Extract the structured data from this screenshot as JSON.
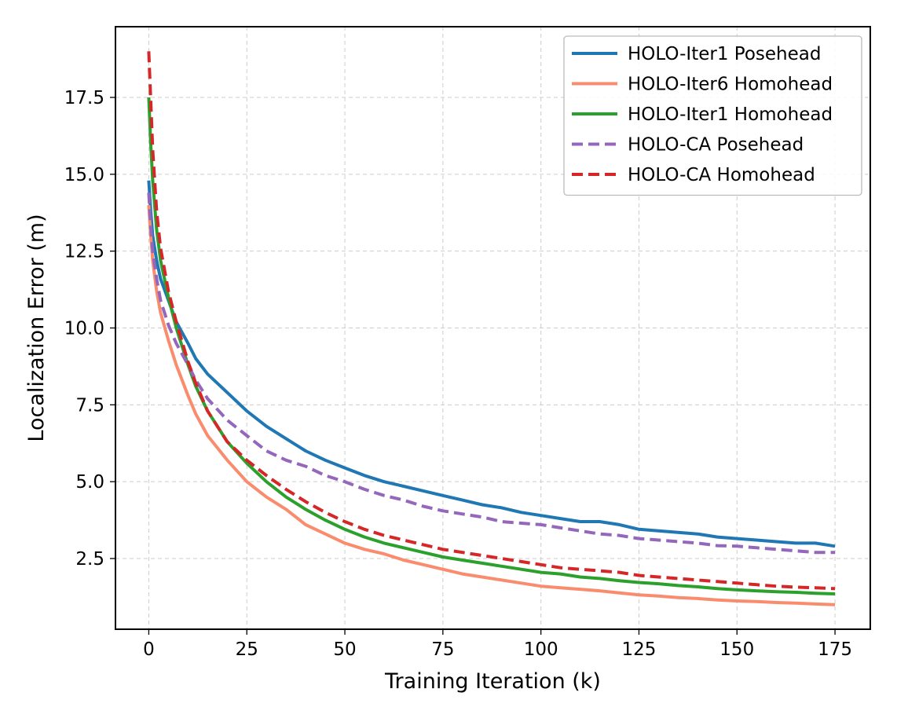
{
  "chart_data": {
    "type": "line",
    "title": "",
    "xlabel": "Training Iteration (k)",
    "ylabel": "Localization Error (m)",
    "xlim": [
      -8.5,
      184
    ],
    "ylim": [
      0.2,
      19.8
    ],
    "xticks": [
      0,
      25,
      50,
      75,
      100,
      125,
      150,
      175
    ],
    "xtick_labels": [
      "0",
      "25",
      "50",
      "75",
      "100",
      "125",
      "150",
      "175"
    ],
    "yticks": [
      2.5,
      5.0,
      7.5,
      10.0,
      12.5,
      15.0,
      17.5
    ],
    "ytick_labels": [
      "2.5",
      "5.0",
      "7.5",
      "10.0",
      "12.5",
      "15.0",
      "17.5"
    ],
    "grid": true,
    "legend_position": "upper-right",
    "series": [
      {
        "name": "HOLO-Iter1 Posehead",
        "color": "#1f77b4",
        "dashed": false,
        "points": [
          [
            0,
            14.8
          ],
          [
            0.5,
            13.8
          ],
          [
            1,
            13.0
          ],
          [
            2,
            12.2
          ],
          [
            3,
            11.6
          ],
          [
            5,
            10.9
          ],
          [
            7,
            10.2
          ],
          [
            10,
            9.5
          ],
          [
            12,
            9.0
          ],
          [
            15,
            8.5
          ],
          [
            20,
            7.9
          ],
          [
            25,
            7.3
          ],
          [
            30,
            6.8
          ],
          [
            35,
            6.4
          ],
          [
            40,
            6.0
          ],
          [
            45,
            5.7
          ],
          [
            50,
            5.45
          ],
          [
            55,
            5.2
          ],
          [
            60,
            5.0
          ],
          [
            65,
            4.85
          ],
          [
            70,
            4.7
          ],
          [
            75,
            4.55
          ],
          [
            80,
            4.4
          ],
          [
            85,
            4.25
          ],
          [
            90,
            4.15
          ],
          [
            95,
            4.0
          ],
          [
            100,
            3.9
          ],
          [
            105,
            3.8
          ],
          [
            110,
            3.7
          ],
          [
            115,
            3.7
          ],
          [
            120,
            3.6
          ],
          [
            125,
            3.45
          ],
          [
            130,
            3.4
          ],
          [
            135,
            3.35
          ],
          [
            140,
            3.3
          ],
          [
            145,
            3.2
          ],
          [
            150,
            3.15
          ],
          [
            155,
            3.1
          ],
          [
            160,
            3.05
          ],
          [
            165,
            3.0
          ],
          [
            170,
            3.0
          ],
          [
            175,
            2.9
          ]
        ]
      },
      {
        "name": "HOLO-Iter6 Homohead",
        "color": "#fa8c6e",
        "dashed": false,
        "points": [
          [
            0,
            14.0
          ],
          [
            0.5,
            13.0
          ],
          [
            1,
            12.2
          ],
          [
            2,
            11.2
          ],
          [
            3,
            10.5
          ],
          [
            5,
            9.6
          ],
          [
            7,
            8.8
          ],
          [
            10,
            7.8
          ],
          [
            12,
            7.2
          ],
          [
            15,
            6.5
          ],
          [
            20,
            5.7
          ],
          [
            25,
            5.0
          ],
          [
            30,
            4.5
          ],
          [
            35,
            4.1
          ],
          [
            40,
            3.6
          ],
          [
            45,
            3.3
          ],
          [
            50,
            3.0
          ],
          [
            55,
            2.8
          ],
          [
            60,
            2.65
          ],
          [
            65,
            2.45
          ],
          [
            70,
            2.3
          ],
          [
            75,
            2.15
          ],
          [
            80,
            2.0
          ],
          [
            85,
            1.9
          ],
          [
            90,
            1.8
          ],
          [
            95,
            1.7
          ],
          [
            100,
            1.6
          ],
          [
            105,
            1.55
          ],
          [
            110,
            1.5
          ],
          [
            115,
            1.45
          ],
          [
            120,
            1.38
          ],
          [
            125,
            1.32
          ],
          [
            130,
            1.28
          ],
          [
            135,
            1.23
          ],
          [
            140,
            1.2
          ],
          [
            145,
            1.15
          ],
          [
            150,
            1.12
          ],
          [
            155,
            1.1
          ],
          [
            160,
            1.07
          ],
          [
            165,
            1.05
          ],
          [
            170,
            1.02
          ],
          [
            175,
            1.0
          ]
        ]
      },
      {
        "name": "HOLO-Iter1 Homohead",
        "color": "#2ca02c",
        "dashed": false,
        "points": [
          [
            0,
            17.5
          ],
          [
            0.5,
            16.0
          ],
          [
            1,
            14.8
          ],
          [
            2,
            13.2
          ],
          [
            3,
            12.2
          ],
          [
            5,
            11.0
          ],
          [
            7,
            10.0
          ],
          [
            10,
            8.8
          ],
          [
            12,
            8.1
          ],
          [
            15,
            7.3
          ],
          [
            20,
            6.3
          ],
          [
            25,
            5.6
          ],
          [
            30,
            5.0
          ],
          [
            35,
            4.5
          ],
          [
            40,
            4.1
          ],
          [
            45,
            3.75
          ],
          [
            50,
            3.45
          ],
          [
            55,
            3.2
          ],
          [
            60,
            3.0
          ],
          [
            65,
            2.85
          ],
          [
            70,
            2.7
          ],
          [
            75,
            2.55
          ],
          [
            80,
            2.45
          ],
          [
            85,
            2.35
          ],
          [
            90,
            2.25
          ],
          [
            95,
            2.15
          ],
          [
            100,
            2.05
          ],
          [
            105,
            2.0
          ],
          [
            110,
            1.9
          ],
          [
            115,
            1.85
          ],
          [
            120,
            1.78
          ],
          [
            125,
            1.72
          ],
          [
            130,
            1.68
          ],
          [
            135,
            1.62
          ],
          [
            140,
            1.58
          ],
          [
            145,
            1.52
          ],
          [
            150,
            1.48
          ],
          [
            155,
            1.45
          ],
          [
            160,
            1.42
          ],
          [
            165,
            1.4
          ],
          [
            170,
            1.37
          ],
          [
            175,
            1.35
          ]
        ]
      },
      {
        "name": "HOLO-CA Posehead",
        "color": "#9467bd",
        "dashed": true,
        "points": [
          [
            0,
            14.4
          ],
          [
            0.5,
            13.3
          ],
          [
            1,
            12.5
          ],
          [
            2,
            11.6
          ],
          [
            3,
            10.9
          ],
          [
            5,
            10.1
          ],
          [
            7,
            9.5
          ],
          [
            10,
            8.8
          ],
          [
            12,
            8.3
          ],
          [
            15,
            7.7
          ],
          [
            20,
            7.0
          ],
          [
            25,
            6.5
          ],
          [
            30,
            6.0
          ],
          [
            35,
            5.7
          ],
          [
            40,
            5.5
          ],
          [
            45,
            5.2
          ],
          [
            50,
            5.0
          ],
          [
            55,
            4.75
          ],
          [
            60,
            4.55
          ],
          [
            65,
            4.4
          ],
          [
            70,
            4.2
          ],
          [
            75,
            4.05
          ],
          [
            80,
            3.95
          ],
          [
            85,
            3.85
          ],
          [
            90,
            3.7
          ],
          [
            95,
            3.65
          ],
          [
            100,
            3.6
          ],
          [
            105,
            3.5
          ],
          [
            110,
            3.4
          ],
          [
            115,
            3.3
          ],
          [
            120,
            3.25
          ],
          [
            125,
            3.15
          ],
          [
            130,
            3.1
          ],
          [
            135,
            3.05
          ],
          [
            140,
            3.0
          ],
          [
            145,
            2.92
          ],
          [
            150,
            2.9
          ],
          [
            155,
            2.85
          ],
          [
            160,
            2.8
          ],
          [
            165,
            2.75
          ],
          [
            170,
            2.7
          ],
          [
            175,
            2.7
          ]
        ]
      },
      {
        "name": "HOLO-CA Homohead",
        "color": "#d62728",
        "dashed": true,
        "points": [
          [
            0,
            19.0
          ],
          [
            0.5,
            17.4
          ],
          [
            1,
            15.8
          ],
          [
            2,
            13.8
          ],
          [
            3,
            12.6
          ],
          [
            5,
            11.2
          ],
          [
            7,
            10.2
          ],
          [
            10,
            8.9
          ],
          [
            12,
            8.2
          ],
          [
            15,
            7.3
          ],
          [
            20,
            6.3
          ],
          [
            25,
            5.7
          ],
          [
            30,
            5.2
          ],
          [
            35,
            4.75
          ],
          [
            40,
            4.35
          ],
          [
            45,
            4.0
          ],
          [
            50,
            3.7
          ],
          [
            55,
            3.45
          ],
          [
            60,
            3.25
          ],
          [
            65,
            3.1
          ],
          [
            70,
            2.95
          ],
          [
            75,
            2.8
          ],
          [
            80,
            2.7
          ],
          [
            85,
            2.6
          ],
          [
            90,
            2.5
          ],
          [
            95,
            2.4
          ],
          [
            100,
            2.3
          ],
          [
            105,
            2.2
          ],
          [
            110,
            2.15
          ],
          [
            115,
            2.1
          ],
          [
            120,
            2.05
          ],
          [
            125,
            1.95
          ],
          [
            130,
            1.9
          ],
          [
            135,
            1.85
          ],
          [
            140,
            1.8
          ],
          [
            145,
            1.75
          ],
          [
            150,
            1.7
          ],
          [
            155,
            1.65
          ],
          [
            160,
            1.6
          ],
          [
            165,
            1.57
          ],
          [
            170,
            1.55
          ],
          [
            175,
            1.52
          ]
        ]
      }
    ]
  }
}
